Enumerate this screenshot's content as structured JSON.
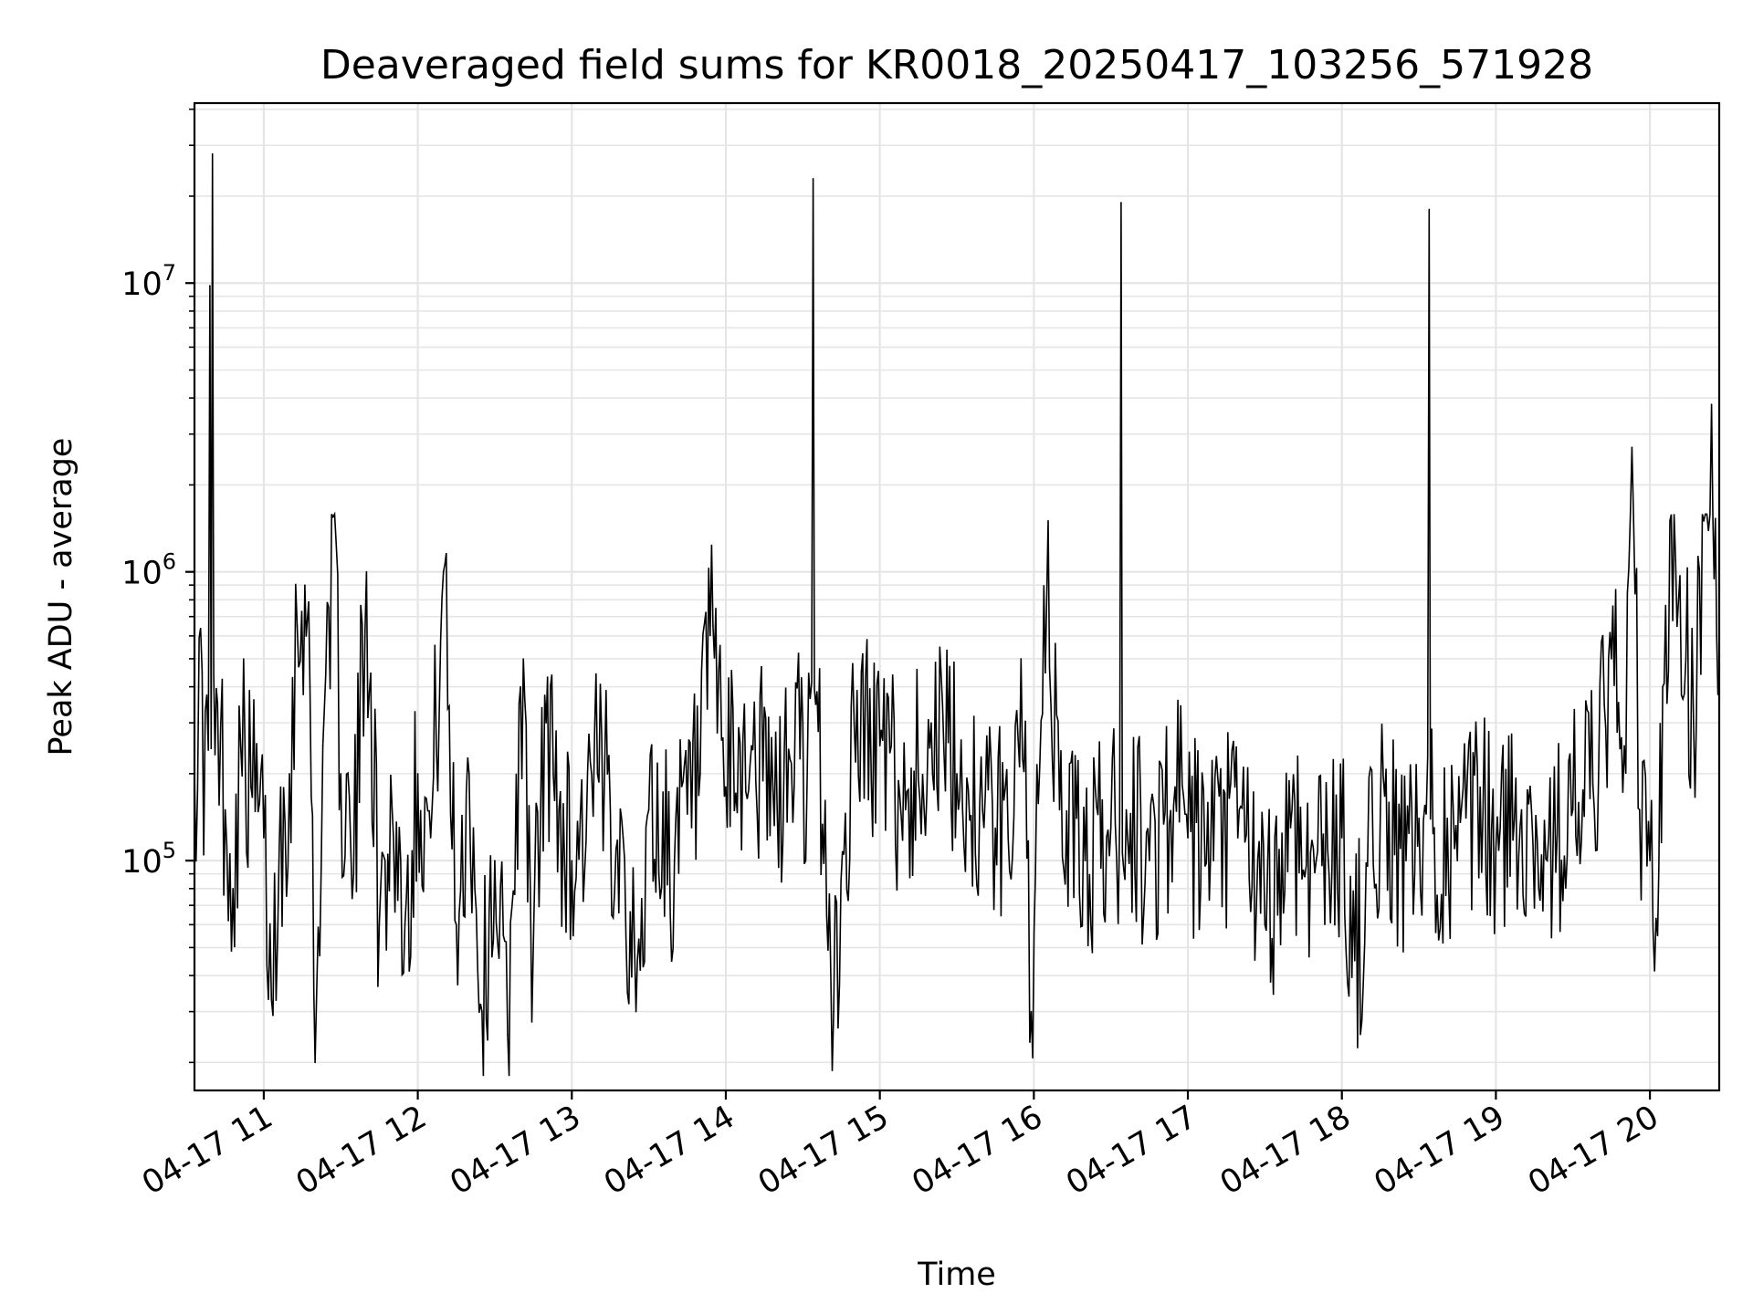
{
  "chart_data": {
    "type": "line",
    "title": "Deaveraged field sums for KR0018_20250417_103256_571928",
    "xlabel": "Time",
    "ylabel": "Peak ADU - average",
    "yscale": "log",
    "ylim": [
      16000,
      42000000
    ],
    "xlim": [
      "2025-04-17 10:33",
      "2025-04-17 20:27"
    ],
    "grid": true,
    "line_color": "#000000",
    "grid_color": "#e5e5e5",
    "x_ticks": [
      {
        "t": "2025-04-17 11:00",
        "label": "04-17 11"
      },
      {
        "t": "2025-04-17 12:00",
        "label": "04-17 12"
      },
      {
        "t": "2025-04-17 13:00",
        "label": "04-17 13"
      },
      {
        "t": "2025-04-17 14:00",
        "label": "04-17 14"
      },
      {
        "t": "2025-04-17 15:00",
        "label": "04-17 15"
      },
      {
        "t": "2025-04-17 16:00",
        "label": "04-17 16"
      },
      {
        "t": "2025-04-17 17:00",
        "label": "04-17 17"
      },
      {
        "t": "2025-04-17 18:00",
        "label": "04-17 18"
      },
      {
        "t": "2025-04-17 19:00",
        "label": "04-17 19"
      },
      {
        "t": "2025-04-17 20:00",
        "label": "04-17 20"
      }
    ],
    "y_ticks": [
      {
        "value": 100000,
        "base": "10",
        "exp": "5"
      },
      {
        "value": 1000000,
        "base": "10",
        "exp": "6"
      },
      {
        "value": 10000000,
        "base": "10",
        "exp": "7"
      }
    ],
    "series": [
      {
        "points": [
          [
            "2025-04-17 10:33",
            200000
          ],
          [
            "2025-04-17 10:36",
            450000
          ],
          [
            "2025-04-17 10:39",
            9800000
          ],
          [
            "2025-04-17 10:40",
            28000000
          ],
          [
            "2025-04-17 10:42",
            350000
          ],
          [
            "2025-04-17 10:45",
            150000
          ],
          [
            "2025-04-17 10:48",
            80000
          ],
          [
            "2025-04-17 10:51",
            250000
          ],
          [
            "2025-04-17 10:55",
            180000
          ],
          [
            "2025-04-17 11:00",
            120000
          ],
          [
            "2025-04-17 11:03",
            33000
          ],
          [
            "2025-04-17 11:06",
            110000
          ],
          [
            "2025-04-17 11:10",
            200000
          ],
          [
            "2025-04-17 11:13",
            650000
          ],
          [
            "2025-04-17 11:16",
            900000
          ],
          [
            "2025-04-17 11:18",
            400000
          ],
          [
            "2025-04-17 11:20",
            20000
          ],
          [
            "2025-04-17 11:23",
            250000
          ],
          [
            "2025-04-17 11:27",
            1550000
          ],
          [
            "2025-04-17 11:30",
            200000
          ],
          [
            "2025-04-17 11:35",
            90000
          ],
          [
            "2025-04-17 11:40",
            1000000
          ],
          [
            "2025-04-17 11:45",
            60000
          ],
          [
            "2025-04-17 11:50",
            150000
          ],
          [
            "2025-04-17 11:55",
            60000
          ],
          [
            "2025-04-17 12:00",
            200000
          ],
          [
            "2025-04-17 12:05",
            120000
          ],
          [
            "2025-04-17 12:10",
            1000000
          ],
          [
            "2025-04-17 12:15",
            60000
          ],
          [
            "2025-04-17 12:20",
            200000
          ],
          [
            "2025-04-17 12:25",
            30000
          ],
          [
            "2025-04-17 12:30",
            100000
          ],
          [
            "2025-04-17 12:35",
            25000
          ],
          [
            "2025-04-17 12:40",
            400000
          ],
          [
            "2025-04-17 12:45",
            50000
          ],
          [
            "2025-04-17 12:50",
            300000
          ],
          [
            "2025-04-17 12:55",
            150000
          ],
          [
            "2025-04-17 13:00",
            100000
          ],
          [
            "2025-04-17 13:10",
            200000
          ],
          [
            "2025-04-17 13:20",
            120000
          ],
          [
            "2025-04-17 13:25",
            30000
          ],
          [
            "2025-04-17 13:30",
            150000
          ],
          [
            "2025-04-17 13:40",
            100000
          ],
          [
            "2025-04-17 13:50",
            200000
          ],
          [
            "2025-04-17 13:55",
            650000
          ],
          [
            "2025-04-17 14:00",
            180000
          ],
          [
            "2025-04-17 14:10",
            250000
          ],
          [
            "2025-04-17 14:20",
            150000
          ],
          [
            "2025-04-17 14:30",
            300000
          ],
          [
            "2025-04-17 14:34",
            23000000
          ],
          [
            "2025-04-17 14:36",
            280000
          ],
          [
            "2025-04-17 14:42",
            30000
          ],
          [
            "2025-04-17 14:50",
            300000
          ],
          [
            "2025-04-17 15:00",
            250000
          ],
          [
            "2025-04-17 15:10",
            150000
          ],
          [
            "2025-04-17 15:20",
            300000
          ],
          [
            "2025-04-17 15:30",
            200000
          ],
          [
            "2025-04-17 15:40",
            150000
          ],
          [
            "2025-04-17 15:50",
            120000
          ],
          [
            "2025-04-17 15:55",
            500000
          ],
          [
            "2025-04-17 15:59",
            30000
          ],
          [
            "2025-04-17 16:05",
            800000
          ],
          [
            "2025-04-17 16:10",
            150000
          ],
          [
            "2025-04-17 16:20",
            100000
          ],
          [
            "2025-04-17 16:30",
            130000
          ],
          [
            "2025-04-17 16:34",
            19000000
          ],
          [
            "2025-04-17 16:36",
            150000
          ],
          [
            "2025-04-17 16:45",
            100000
          ],
          [
            "2025-04-17 16:55",
            180000
          ],
          [
            "2025-04-17 17:00",
            120000
          ],
          [
            "2025-04-17 17:10",
            100000
          ],
          [
            "2025-04-17 17:20",
            150000
          ],
          [
            "2025-04-17 17:30",
            60000
          ],
          [
            "2025-04-17 17:40",
            130000
          ],
          [
            "2025-04-17 17:50",
            100000
          ],
          [
            "2025-04-17 18:00",
            120000
          ],
          [
            "2025-04-17 18:05",
            45000
          ],
          [
            "2025-04-17 18:15",
            150000
          ],
          [
            "2025-04-17 18:25",
            100000
          ],
          [
            "2025-04-17 18:34",
            18000000
          ],
          [
            "2025-04-17 18:36",
            130000
          ],
          [
            "2025-04-17 18:45",
            100000
          ],
          [
            "2025-04-17 18:55",
            150000
          ],
          [
            "2025-04-17 19:00",
            110000
          ],
          [
            "2025-04-17 19:10",
            150000
          ],
          [
            "2025-04-17 19:20",
            100000
          ],
          [
            "2025-04-17 19:30",
            150000
          ],
          [
            "2025-04-17 19:40",
            200000
          ],
          [
            "2025-04-17 19:45",
            500000
          ],
          [
            "2025-04-17 19:50",
            250000
          ],
          [
            "2025-04-17 19:53",
            2700000
          ],
          [
            "2025-04-17 19:56",
            150000
          ],
          [
            "2025-04-17 20:00",
            100000
          ],
          [
            "2025-04-17 20:03",
            55000
          ],
          [
            "2025-04-17 20:05",
            400000
          ],
          [
            "2025-04-17 20:10",
            1100000
          ],
          [
            "2025-04-17 20:14",
            500000
          ],
          [
            "2025-04-17 20:17",
            300000
          ],
          [
            "2025-04-17 20:21",
            1500000
          ],
          [
            "2025-04-17 20:24",
            3800000
          ],
          [
            "2025-04-17 20:26",
            600000
          ],
          [
            "2025-04-17 20:27",
            450000
          ]
        ]
      }
    ]
  }
}
